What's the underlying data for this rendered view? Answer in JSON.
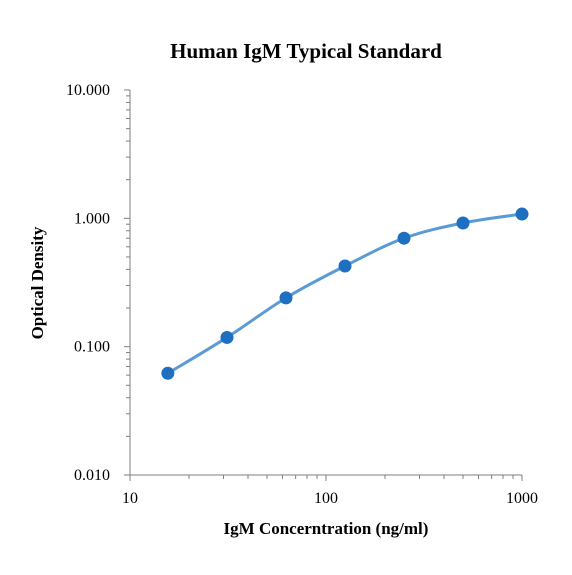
{
  "chart_data": {
    "type": "scatter",
    "title": "Human IgM Typical Standard",
    "xlabel": "IgM Concerntration (ng/ml)",
    "ylabel": "Optical Density",
    "x_scale": "log",
    "y_scale": "log",
    "xlim": [
      10,
      1000
    ],
    "ylim": [
      0.01,
      10
    ],
    "x_ticks": [
      {
        "value": 10,
        "label": "10"
      },
      {
        "value": 100,
        "label": "100"
      },
      {
        "value": 1000,
        "label": "1000"
      }
    ],
    "y_ticks": [
      {
        "value": 10,
        "label": "10.000"
      },
      {
        "value": 1,
        "label": "1.000"
      },
      {
        "value": 0.1,
        "label": "0.100"
      },
      {
        "value": 0.01,
        "label": "0.010"
      }
    ],
    "grid": false,
    "legend": "none",
    "series": [
      {
        "x": [
          15.6,
          31.25,
          62.5,
          125,
          250,
          500,
          1000
        ],
        "y": [
          0.062,
          0.118,
          0.24,
          0.425,
          0.7,
          0.92,
          1.08
        ],
        "marker_color": "#1f6fc0",
        "line_color": "#5b9bd5",
        "line": "smooth"
      }
    ]
  }
}
